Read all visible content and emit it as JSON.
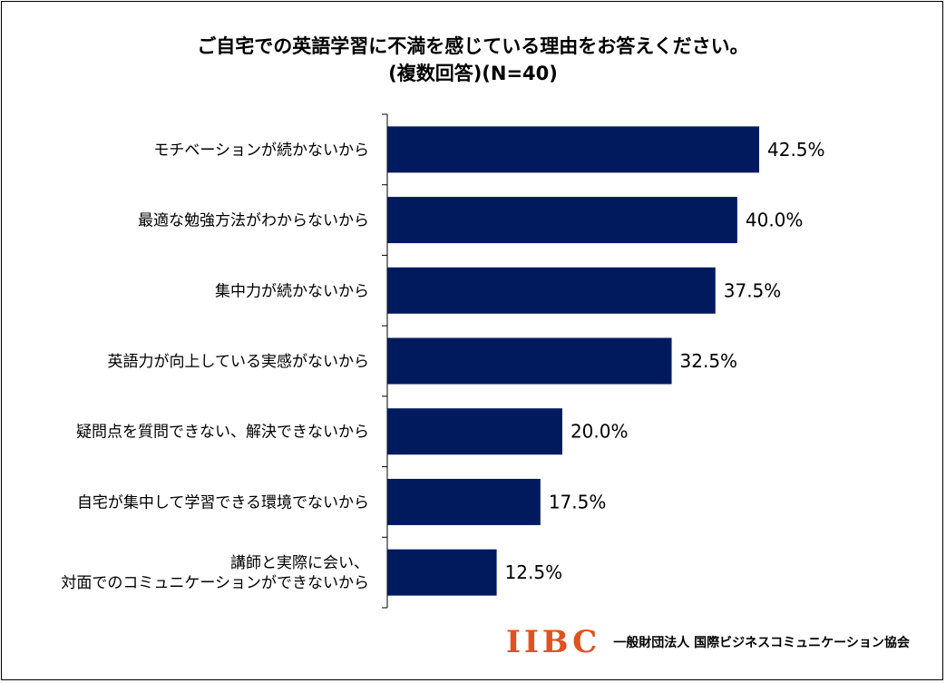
{
  "title": {
    "line1": "ご自宅での英語学習に不満を感じている理由をお答えください。",
    "line2": "(複数回答)(N=40)"
  },
  "chart_data": {
    "type": "bar",
    "orientation": "horizontal",
    "title": "ご自宅での英語学習に不満を感じている理由をお答えください。 (複数回答)(N=40)",
    "categories": [
      [
        "モチベーションが続かないから"
      ],
      [
        "最適な勉強方法がわからないから"
      ],
      [
        "集中力が続かないから"
      ],
      [
        "英語力が向上している実感がないから"
      ],
      [
        "疑問点を質問できない、解決できないから"
      ],
      [
        "自宅が集中して学習できる環境でないから"
      ],
      [
        "講師と実際に会い、",
        "対面でのコミュニケーションができないから"
      ]
    ],
    "values": [
      42.5,
      40.0,
      37.5,
      32.5,
      20.0,
      17.5,
      12.5
    ],
    "value_labels": [
      "42.5%",
      "40.0%",
      "37.5%",
      "32.5%",
      "20.0%",
      "17.5%",
      "12.5%"
    ],
    "bar_color": "#001a5e",
    "grid": false,
    "legend": "none"
  },
  "logo": {
    "mark": "IIBC",
    "org": "一般財団法人 国際ビジネスコミュニケーション協会",
    "color": "#e0521f"
  }
}
